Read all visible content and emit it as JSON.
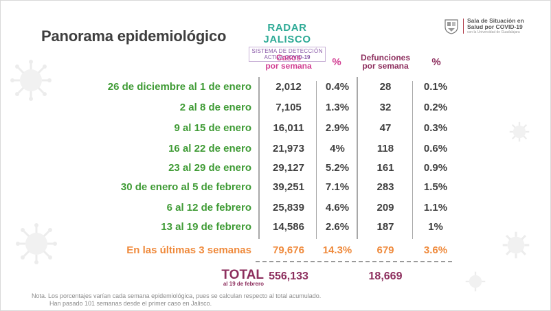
{
  "title": "Panorama epidemiológico",
  "radar": {
    "title": "RADAR JALISCO",
    "sub1": "SISTEMA DE DETECCIÓN",
    "sub2a": "ACTIVA ",
    "sub2b": "COVID-19"
  },
  "logo": {
    "line1": "Sala de Situación en",
    "line2": "Salud por COVID-19",
    "line3": "con la Universidad de Guadalajara"
  },
  "headers": {
    "casos": [
      "Casos",
      "por semana"
    ],
    "pct1": "%",
    "defunciones": [
      "Defunciones",
      "por semana"
    ],
    "pct2": "%"
  },
  "rows": [
    {
      "label": "26 de diciembre al 1 de enero",
      "casos": "2,012",
      "pct_casos": "0.4%",
      "def": "28",
      "pct_def": "0.1%"
    },
    {
      "label": "2 al 8 de enero",
      "casos": "7,105",
      "pct_casos": "1.3%",
      "def": "32",
      "pct_def": "0.2%"
    },
    {
      "label": "9 al 15 de enero",
      "casos": "16,011",
      "pct_casos": "2.9%",
      "def": "47",
      "pct_def": "0.3%"
    },
    {
      "label": "16 al 22 de enero",
      "casos": "21,973",
      "pct_casos": "4%",
      "def": "118",
      "pct_def": "0.6%"
    },
    {
      "label": "23 al 29 de enero",
      "casos": "29,127",
      "pct_casos": "5.2%",
      "def": "161",
      "pct_def": "0.9%"
    },
    {
      "label": "30 de enero al 5 de febrero",
      "casos": "39,251",
      "pct_casos": "7.1%",
      "def": "283",
      "pct_def": "1.5%"
    },
    {
      "label": "6 al 12 de febrero",
      "casos": "25,839",
      "pct_casos": "4.6%",
      "def": "209",
      "pct_def": "1.1%"
    },
    {
      "label": "13 al 19 de febrero",
      "casos": "14,586",
      "pct_casos": "2.6%",
      "def": "187",
      "pct_def": "1%"
    }
  ],
  "summary": {
    "label": "En las últimas 3 semanas",
    "casos": "79,676",
    "pct_casos": "14.3%",
    "def": "679",
    "pct_def": "3.6%"
  },
  "total": {
    "label": "TOTAL",
    "sublabel": "al 19 de febrero",
    "casos": "556,133",
    "def": "18,669"
  },
  "note": {
    "line1": "Nota. Los porcentajes varían cada semana epidemiológica, pues se calculan respecto al total acumulado.",
    "line2": "Han pasado 101 semanas desde el primer caso en Jalisco."
  },
  "colors": {
    "green_label": "#3f9b35",
    "orange": "#ef8a3c",
    "magenta": "#d23f93",
    "plum": "#8d2f5e",
    "radar_teal": "#2eaa96"
  },
  "icons": [
    "virus-icon",
    "jalisco-seal-icon"
  ]
}
